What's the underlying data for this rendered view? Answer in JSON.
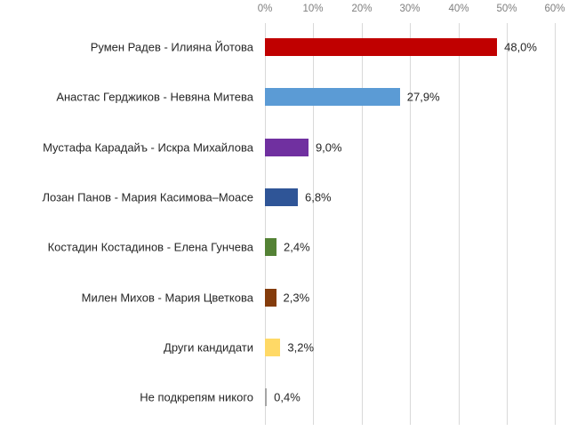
{
  "chart_data": {
    "type": "bar",
    "orientation": "horizontal",
    "title": "",
    "xlabel": "",
    "ylabel": "",
    "xlim": [
      0,
      60
    ],
    "x_ticks": [
      "0%",
      "10%",
      "20%",
      "30%",
      "40%",
      "50%",
      "60%"
    ],
    "x_axis_position": "top",
    "grid": true,
    "legend": null,
    "categories": [
      "Румен Радев - Илияна Йотова",
      "Анастас Герджиков - Невяна Митева",
      "Мустафа Карадайъ - Искра Михайлова",
      "Лозан Панов - Мария Касимова–Моасе",
      "Костадин Костадинов - Елена Гунчева",
      "Милен Михов - Мария Цветкова",
      "Други кандидати",
      "Не подкрепям никого"
    ],
    "values": [
      48.0,
      27.9,
      9.0,
      6.8,
      2.4,
      2.3,
      3.2,
      0.4
    ],
    "value_labels": [
      "48,0%",
      "27,9%",
      "9,0%",
      "6,8%",
      "2,4%",
      "2,3%",
      "3,2%",
      "0,4%"
    ],
    "colors": [
      "#c00000",
      "#5b9bd5",
      "#7030a0",
      "#2f5597",
      "#548235",
      "#843c0c",
      "#ffd966",
      "#a6a6a6"
    ]
  }
}
